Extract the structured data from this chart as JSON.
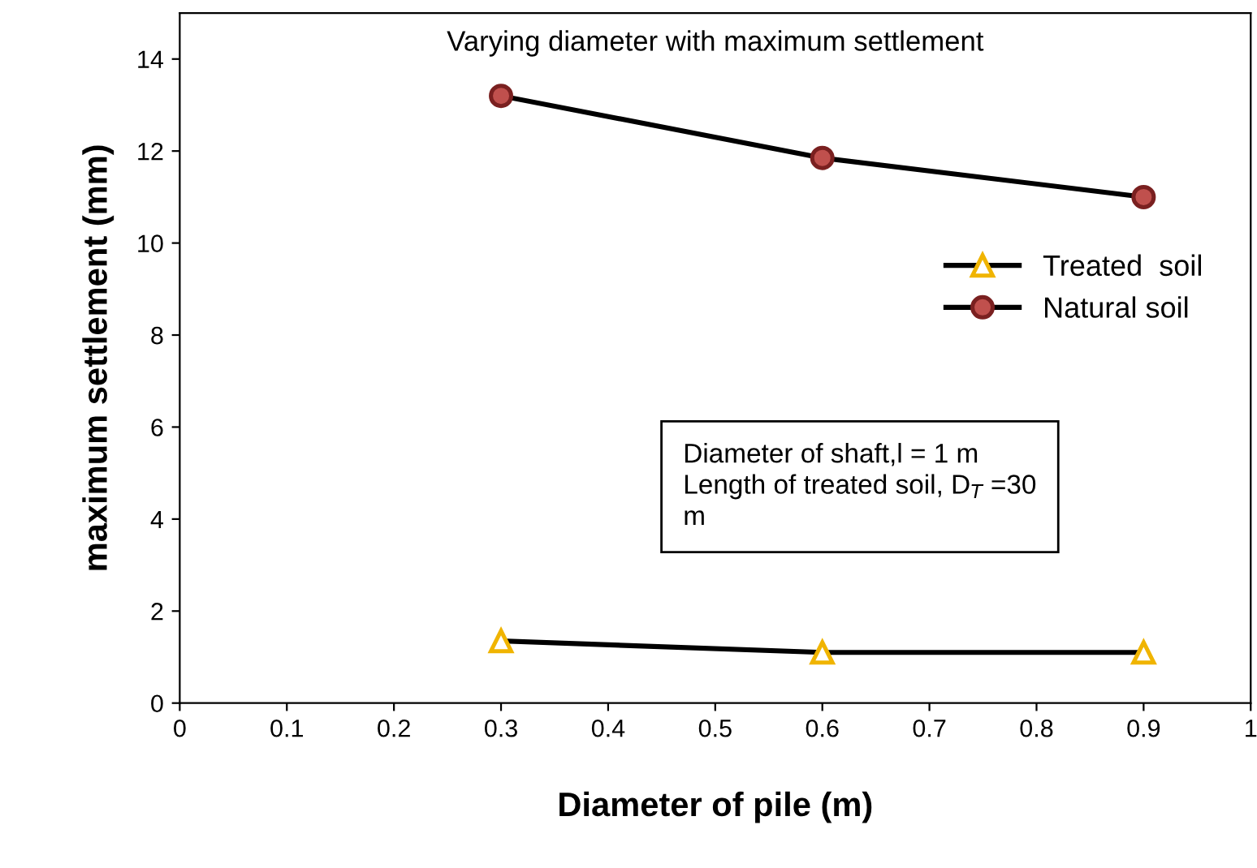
{
  "chart_data": {
    "type": "line",
    "title": "Varying diameter with maximum settlement",
    "xlabel": "Diameter of pile (m)",
    "ylabel": "maximum settlement (mm)",
    "xlim": [
      0,
      1
    ],
    "xticks": [
      0,
      0.1,
      0.2,
      0.3,
      0.4,
      0.5,
      0.6,
      0.7,
      0.8,
      0.9,
      1
    ],
    "ylim": [
      0,
      15
    ],
    "yticks": [
      0,
      2,
      4,
      6,
      8,
      10,
      12,
      14
    ],
    "x": [
      0.3,
      0.6,
      0.9
    ],
    "series": [
      {
        "name": "Treated  soil",
        "color": "#000000",
        "marker": "triangle",
        "values": [
          1.35,
          1.1,
          1.1
        ]
      },
      {
        "name": "Natural soil",
        "color": "#000000",
        "marker": "circle",
        "values": [
          13.2,
          11.85,
          11.0
        ]
      }
    ],
    "annotations": [
      "Diameter of shaft,l = 1 m\nLength of treated soil, D$_{T}$ =30\nm"
    ],
    "legend": "right",
    "grid": false
  }
}
